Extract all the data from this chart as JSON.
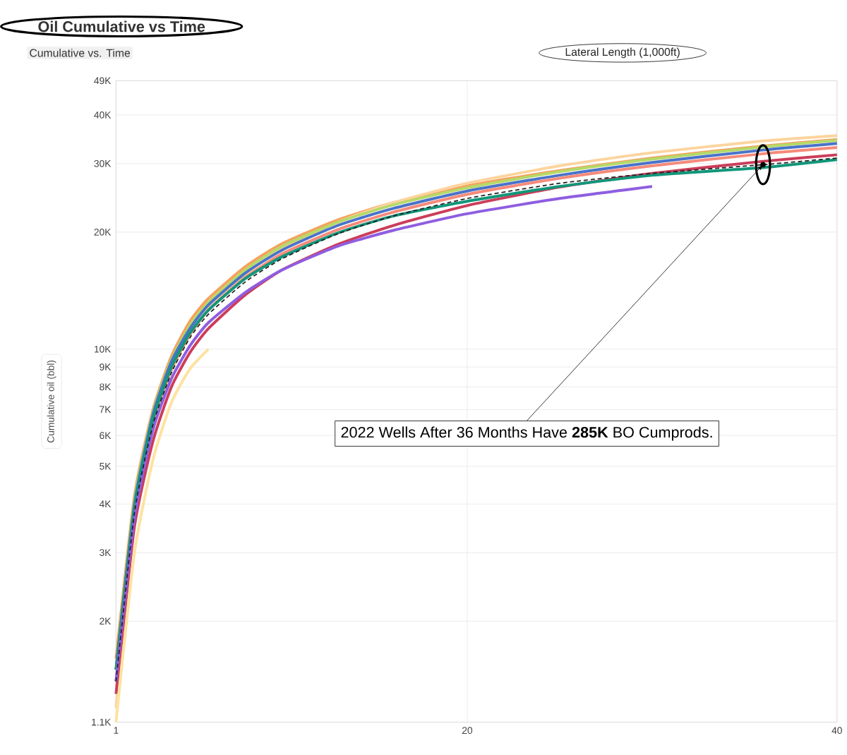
{
  "chart_data": {
    "type": "line",
    "title": "Oil Cumulative vs Time",
    "subtitle": "Cumulative vs. Time",
    "legend_title": "Lateral Length (1,000ft)",
    "ylabel": "Cumulative oil (bbl)",
    "log": "y",
    "grid": true,
    "line_style": "solid",
    "marker": "none",
    "xlim": [
      1,
      40
    ],
    "xticks": [
      1,
      20,
      40
    ],
    "ylim": [
      1100,
      49000
    ],
    "yticks": [
      {
        "value": 1100,
        "label": "1.1K"
      },
      {
        "value": 2000,
        "label": "2K"
      },
      {
        "value": 3000,
        "label": "3K"
      },
      {
        "value": 4000,
        "label": "4K"
      },
      {
        "value": 5000,
        "label": "5K"
      },
      {
        "value": 6000,
        "label": "6K"
      },
      {
        "value": 7000,
        "label": "7K"
      },
      {
        "value": 8000,
        "label": "8K"
      },
      {
        "value": 9000,
        "label": "9K"
      },
      {
        "value": 10000,
        "label": "10K"
      },
      {
        "value": 20000,
        "label": "20K"
      },
      {
        "value": 30000,
        "label": "30K"
      },
      {
        "value": 40000,
        "label": "40K"
      },
      {
        "value": 49000,
        "label": "49K"
      }
    ],
    "x": [
      1,
      2,
      3,
      4,
      5,
      6,
      8,
      10,
      13,
      16,
      20,
      25,
      30,
      36,
      40
    ],
    "series": [
      {
        "color": "#f5a25d",
        "values": [
          1600,
          4200,
          7000,
          9600,
          11800,
          13500,
          16300,
          18700,
          21500,
          23800,
          26300,
          28800,
          31000,
          33300,
          34600
        ]
      },
      {
        "color": "#fdd49e",
        "values": [
          1200,
          3600,
          6300,
          8800,
          10900,
          12700,
          15600,
          18100,
          21200,
          23800,
          26700,
          29600,
          32000,
          34300,
          35400
        ]
      },
      {
        "color": "#b5d96a",
        "values": [
          1500,
          4100,
          6900,
          9400,
          11500,
          13200,
          16000,
          18400,
          21200,
          23500,
          26000,
          28600,
          30800,
          33100,
          34400
        ]
      },
      {
        "color": "#4a72c9",
        "values": [
          1500,
          4000,
          6800,
          9300,
          11300,
          13000,
          15700,
          18000,
          20800,
          23000,
          25500,
          28000,
          30200,
          32500,
          33800
        ]
      },
      {
        "color": "#f58a7a",
        "values": [
          1400,
          3800,
          6500,
          8900,
          10900,
          12600,
          15300,
          17600,
          20300,
          22500,
          25000,
          27500,
          29600,
          31800,
          33000
        ]
      },
      {
        "color": "#cc3d5a",
        "values": [
          1300,
          3500,
          5800,
          8000,
          9800,
          11300,
          13800,
          16000,
          18600,
          20800,
          23400,
          26100,
          28300,
          30400,
          31600
        ]
      },
      {
        "color": "#12967a",
        "values": [
          1500,
          3900,
          6600,
          9000,
          11000,
          12600,
          15200,
          17300,
          19900,
          22000,
          24000,
          26200,
          28000,
          29300,
          30700
        ]
      },
      {
        "color": "#8e5ee0",
        "values": [
          1400,
          3700,
          6200,
          8400,
          10200,
          11700,
          14000,
          16000,
          18400,
          20200,
          22300,
          24400,
          26200,
          null,
          null
        ]
      },
      {
        "color": "#fde2a0",
        "values": [
          1100,
          3000,
          5200,
          7300,
          8900,
          10000,
          null,
          null,
          null,
          null,
          null,
          null,
          null,
          null,
          null
        ]
      },
      {
        "color": "#222222",
        "line_style": "dashed",
        "values": [
          1400,
          3800,
          6400,
          8700,
          10700,
          12300,
          14900,
          17100,
          19800,
          22000,
          24400,
          26700,
          28300,
          29800,
          31000
        ]
      }
    ],
    "annotations": [
      {
        "text": "2022 Wells After 36 Months Have **285K** BO Cumprods.",
        "x": 36,
        "y": 29800
      }
    ]
  }
}
